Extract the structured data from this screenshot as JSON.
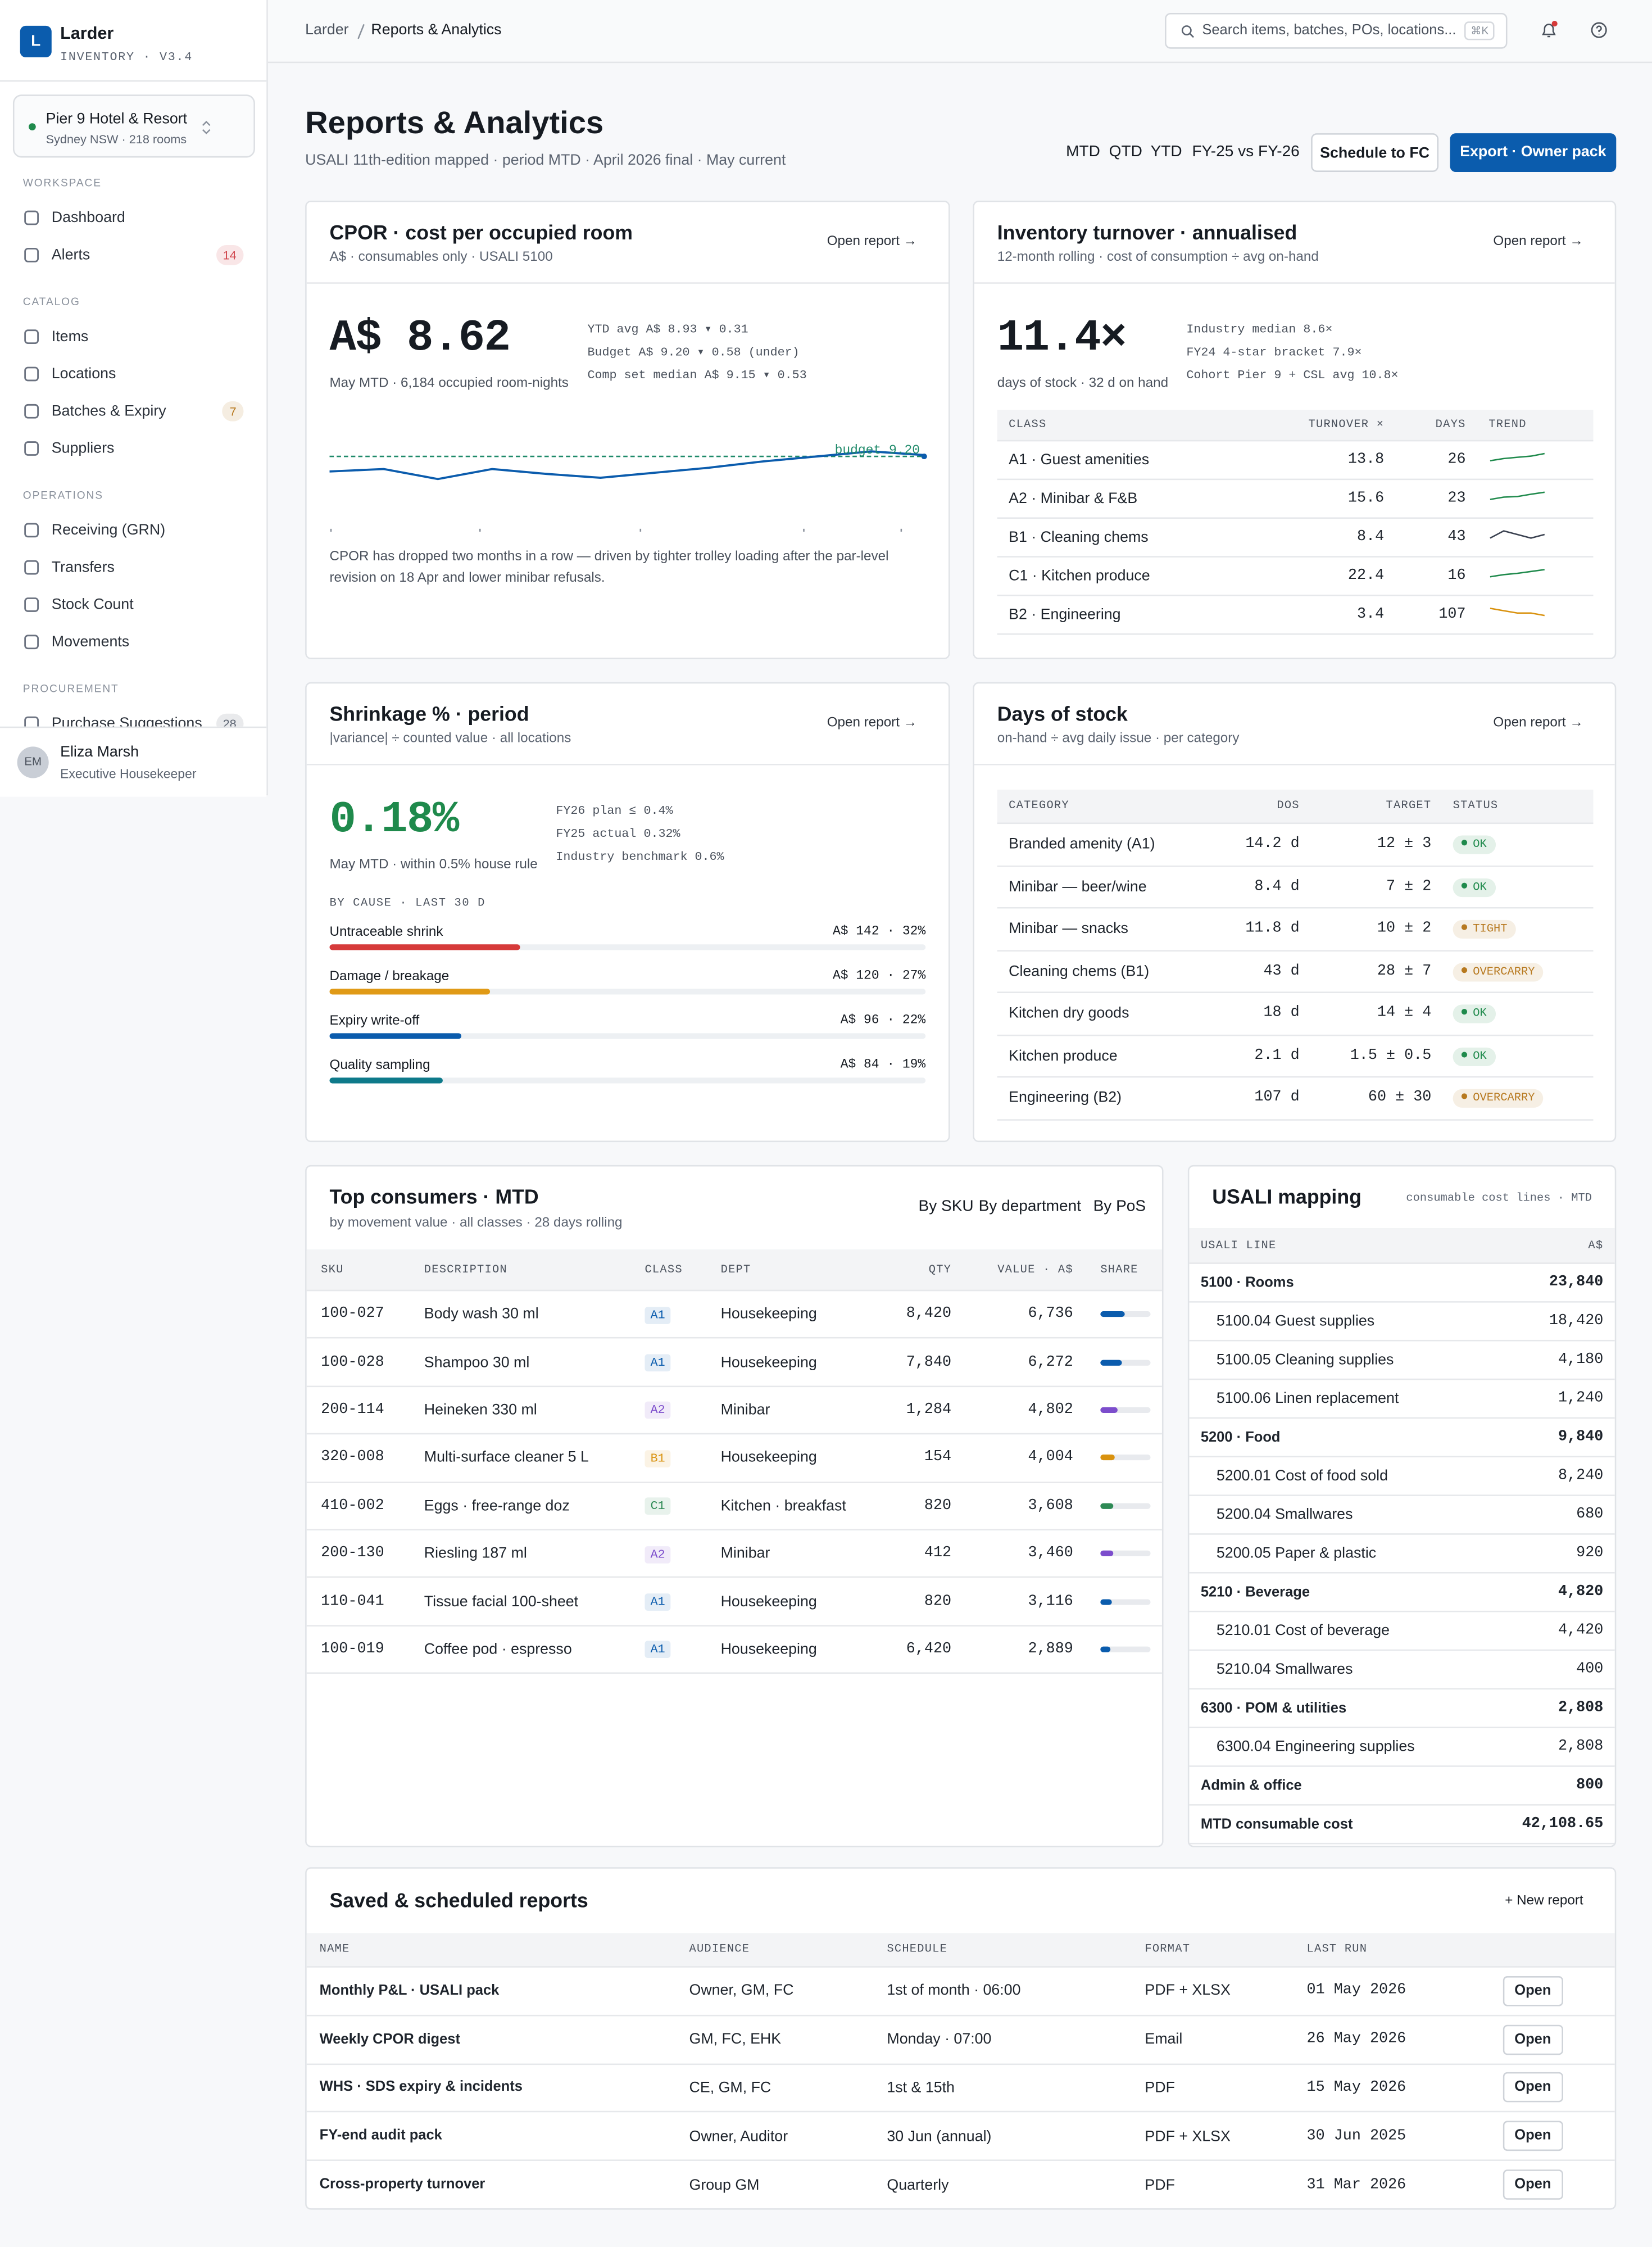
{
  "app": {
    "logo": "L",
    "name": "Larder",
    "version": "INVENTORY · V3.4"
  },
  "property": {
    "name": "Pier 9 Hotel & Resort",
    "sub": "Sydney NSW · 218 rooms"
  },
  "nav": [
    {
      "label": "WORKSPACE",
      "items": [
        {
          "label": "Dashboard"
        },
        {
          "label": "Alerts",
          "badge": "14",
          "badge_color": "#d0454c"
        }
      ]
    },
    {
      "label": "CATALOG",
      "items": [
        {
          "label": "Items"
        },
        {
          "label": "Locations"
        },
        {
          "label": "Batches & Expiry",
          "badge": "7",
          "badge_color": "#b7791f"
        },
        {
          "label": "Suppliers"
        }
      ]
    },
    {
      "label": "OPERATIONS",
      "items": [
        {
          "label": "Receiving (GRN)"
        },
        {
          "label": "Transfers"
        },
        {
          "label": "Stock Count"
        },
        {
          "label": "Movements"
        }
      ]
    },
    {
      "label": "PROCUREMENT",
      "items": [
        {
          "label": "Purchase Suggestions",
          "badge": "28",
          "badge_color": "#5b6370"
        }
      ]
    }
  ],
  "user": {
    "initials": "EM",
    "name": "Eliza Marsh",
    "role": "Executive Housekeeper"
  },
  "breadcrumb": [
    "Larder",
    "Reports & Analytics"
  ],
  "search": {
    "placeholder": "Search items, batches, POs, locations...",
    "shortcut": "⌘K"
  },
  "header": {
    "title": "Reports & Analytics",
    "subtitle": "USALI 11th-edition mapped · period MTD · April 2026 final · May current",
    "periods": [
      "MTD",
      "QTD",
      "YTD",
      "FY-25 vs FY-26"
    ],
    "actions": [
      "Schedule to FC",
      "Export · Owner pack"
    ]
  },
  "cpor": {
    "title": "CPOR · cost per occupied room",
    "subtitle": "A$ · consumables only · USALI 5100",
    "link": "Open report →",
    "value": "A$ 8.62",
    "value_note": "May MTD · 6,184 occupied room-nights",
    "details": [
      "YTD avg A$ 8.93 ▾ 0.31",
      "Budget A$ 9.20 ▾ 0.58 (under)",
      "Comp set median A$ 9.15 ▾ 0.53"
    ],
    "chart": {
      "type": "line",
      "values": [
        9.08,
        9.1,
        9.02,
        9.1,
        9.06,
        9.03,
        9.07,
        9.11,
        9.16,
        9.2,
        9.24,
        9.21
      ],
      "ylim": [
        8.6,
        9.4
      ],
      "color": "#0b5cad",
      "budget": 9.2,
      "budget_label": "budget 9.20",
      "budget_color": "#1f8a6a"
    },
    "note": "CPOR has dropped two months in a row — driven by tighter trolley loading after the par-level revision on 18 Apr and lower minibar refusals."
  },
  "turnover": {
    "title": "Inventory turnover · annualised",
    "subtitle": "12-month rolling · cost of consumption ÷ avg on-hand",
    "link": "Open report →",
    "value": "11.4×",
    "value_note": "days of stock · 32 d on hand",
    "details": [
      "Industry median 8.6×",
      "FY24 4-star bracket 7.9×",
      "Cohort Pier 9 + CSL avg 10.8×"
    ],
    "columns": [
      "CLASS",
      "TURNOVER ×",
      "DAYS",
      "TREND"
    ],
    "rows": [
      {
        "class": "A1 · Guest amenities",
        "turnover": "13.8",
        "days": "26",
        "trend": [
          12.1,
          12.6,
          12.9,
          13.2,
          13.8
        ],
        "color": "#1f8a4c"
      },
      {
        "class": "A2 · Minibar & F&B",
        "turnover": "15.6",
        "days": "23",
        "trend": [
          13.4,
          14.1,
          14.3,
          15.0,
          15.6
        ],
        "color": "#1f8a4c"
      },
      {
        "class": "B1 · Cleaning chems",
        "turnover": "8.4",
        "days": "43",
        "trend": [
          8.3,
          8.5,
          8.4,
          8.3,
          8.4
        ],
        "color": "#3a4150"
      },
      {
        "class": "C1 · Kitchen produce",
        "turnover": "22.4",
        "days": "16",
        "trend": [
          20.1,
          20.8,
          21.2,
          21.8,
          22.4
        ],
        "color": "#1f8a4c"
      },
      {
        "class": "B2 · Engineering",
        "turnover": "3.4",
        "days": "107",
        "trend": [
          3.7,
          3.6,
          3.5,
          3.5,
          3.4
        ],
        "color": "#d9920f"
      }
    ]
  },
  "shrinkage": {
    "title": "Shrinkage % · period",
    "subtitle": "|variance| ÷ counted value · all locations",
    "link": "Open report →",
    "value": "0.18%",
    "value_note": "May MTD · within 0.5% house rule",
    "details": [
      "FY26 plan ≤ 0.4%",
      "FY25 actual 0.32%",
      "Industry benchmark 0.6%"
    ],
    "causes_label": "BY CAUSE · LAST 30 D",
    "causes": [
      {
        "name": "Untraceable shrink",
        "label": "A$ 142 · 32%",
        "share": 32,
        "color": "#d63a3a"
      },
      {
        "name": "Damage / breakage",
        "label": "A$ 120 · 27%",
        "share": 27,
        "color": "#e09a16"
      },
      {
        "name": "Expiry write-off",
        "label": "A$ 96 · 22%",
        "share": 22,
        "color": "#0b5cad"
      },
      {
        "name": "Quality sampling",
        "label": "A$ 84 · 19%",
        "share": 19,
        "color": "#0e7a8a"
      }
    ]
  },
  "dos": {
    "title": "Days of stock",
    "subtitle": "on-hand ÷ avg daily issue · per category",
    "link": "Open report →",
    "columns": [
      "CATEGORY",
      "DOS",
      "TARGET",
      "STATUS"
    ],
    "rows": [
      {
        "category": "Branded amenity (A1)",
        "dos": "14.2 d",
        "target": "12 ± 3",
        "status": "OK",
        "color": "#1f8a4c"
      },
      {
        "category": "Minibar — beer/wine",
        "dos": "8.4 d",
        "target": "7 ± 2",
        "status": "OK",
        "color": "#1f8a4c"
      },
      {
        "category": "Minibar — snacks",
        "dos": "11.8 d",
        "target": "10 ± 2",
        "status": "TIGHT",
        "color": "#b7791f"
      },
      {
        "category": "Cleaning chems (B1)",
        "dos": "43 d",
        "target": "28 ± 7",
        "status": "OVERCARRY",
        "color": "#b7791f"
      },
      {
        "category": "Kitchen dry goods",
        "dos": "18 d",
        "target": "14 ± 4",
        "status": "OK",
        "color": "#1f8a4c"
      },
      {
        "category": "Kitchen produce",
        "dos": "2.1 d",
        "target": "1.5 ± 0.5",
        "status": "OK",
        "color": "#1f8a4c"
      },
      {
        "category": "Engineering (B2)",
        "dos": "107 d",
        "target": "60 ± 30",
        "status": "OVERCARRY",
        "color": "#b7791f"
      }
    ]
  },
  "consumers": {
    "title": "Top consumers · MTD",
    "subtitle": "by movement value · all classes · 28 days rolling",
    "tabs": [
      "By SKU",
      "By department",
      "By PoS"
    ],
    "columns": [
      "SKU",
      "DESCRIPTION",
      "CLASS",
      "DEPT",
      "QTY",
      "VALUE · A$",
      "SHARE"
    ],
    "rows": [
      {
        "sku": "100-027",
        "description": "Body wash 30 ml",
        "class": "A1",
        "dept": "Housekeeping",
        "qty": "8,420",
        "value": "6,736",
        "share": 48,
        "color": "#0b5cad"
      },
      {
        "sku": "100-028",
        "description": "Shampoo 30 ml",
        "class": "A1",
        "dept": "Housekeeping",
        "qty": "7,840",
        "value": "6,272",
        "share": 43,
        "color": "#0b5cad"
      },
      {
        "sku": "200-114",
        "description": "Heineken 330 ml",
        "class": "A2",
        "dept": "Minibar",
        "qty": "1,284",
        "value": "4,802",
        "share": 34,
        "color": "#7c4dcc"
      },
      {
        "sku": "320-008",
        "description": "Multi-surface cleaner 5 L",
        "class": "B1",
        "dept": "Housekeeping",
        "qty": "154",
        "value": "4,004",
        "share": 29,
        "color": "#d9920f"
      },
      {
        "sku": "410-002",
        "description": "Eggs · free-range doz",
        "class": "C1",
        "dept": "Kitchen · breakfast",
        "qty": "820",
        "value": "3,608",
        "share": 26,
        "color": "#2e8a55"
      },
      {
        "sku": "200-130",
        "description": "Riesling 187 ml",
        "class": "A2",
        "dept": "Minibar",
        "qty": "412",
        "value": "3,460",
        "share": 25,
        "color": "#7c4dcc"
      },
      {
        "sku": "110-041",
        "description": "Tissue facial 100-sheet",
        "class": "A1",
        "dept": "Housekeeping",
        "qty": "820",
        "value": "3,116",
        "share": 22,
        "color": "#0b5cad"
      },
      {
        "sku": "100-019",
        "description": "Coffee pod · espresso",
        "class": "A1",
        "dept": "Housekeeping",
        "qty": "6,420",
        "value": "2,889",
        "share": 21,
        "color": "#0b5cad"
      }
    ]
  },
  "usali": {
    "title": "USALI mapping",
    "subtitle": "consumable cost lines · MTD",
    "columns": [
      "USALI LINE",
      "A$"
    ],
    "rows": [
      {
        "label": "5100 · Rooms",
        "value": "23,840",
        "bold": true
      },
      {
        "label": "5100.04 Guest supplies",
        "value": "18,420",
        "indent": true
      },
      {
        "label": "5100.05 Cleaning supplies",
        "value": "4,180",
        "indent": true
      },
      {
        "label": "5100.06 Linen replacement",
        "value": "1,240",
        "indent": true
      },
      {
        "label": "5200 · Food",
        "value": "9,840",
        "bold": true
      },
      {
        "label": "5200.01 Cost of food sold",
        "value": "8,240",
        "indent": true
      },
      {
        "label": "5200.04 Smallwares",
        "value": "680",
        "indent": true
      },
      {
        "label": "5200.05 Paper & plastic",
        "value": "920",
        "indent": true
      },
      {
        "label": "5210 · Beverage",
        "value": "4,820",
        "bold": true
      },
      {
        "label": "5210.01 Cost of beverage",
        "value": "4,420",
        "indent": true
      },
      {
        "label": "5210.04 Smallwares",
        "value": "400",
        "indent": true
      },
      {
        "label": "6300 · POM & utilities",
        "value": "2,808",
        "bold": true
      },
      {
        "label": "6300.04 Engineering supplies",
        "value": "2,808",
        "indent": true
      },
      {
        "label": "Admin & office",
        "value": "800",
        "bold": true
      },
      {
        "label": "MTD consumable cost",
        "value": "42,108.65",
        "bold": true
      }
    ]
  },
  "saved": {
    "title": "Saved & scheduled reports",
    "action": "+ New report",
    "columns": [
      "NAME",
      "AUDIENCE",
      "SCHEDULE",
      "FORMAT",
      "LAST RUN"
    ],
    "button": "Open",
    "rows": [
      [
        "Monthly P&L · USALI pack",
        "Owner, GM, FC",
        "1st of month · 06:00",
        "PDF + XLSX",
        "01 May 2026"
      ],
      [
        "Weekly CPOR digest",
        "GM, FC, EHK",
        "Monday · 07:00",
        "Email",
        "26 May 2026"
      ],
      [
        "WHS · SDS expiry & incidents",
        "CE, GM, FC",
        "1st & 15th",
        "PDF",
        "15 May 2026"
      ],
      [
        "FY-end audit pack",
        "Owner, Auditor",
        "30 Jun (annual)",
        "PDF + XLSX",
        "30 Jun 2025"
      ],
      [
        "Cross-property turnover",
        "Group GM",
        "Quarterly",
        "PDF",
        "31 Mar 2026"
      ]
    ]
  }
}
